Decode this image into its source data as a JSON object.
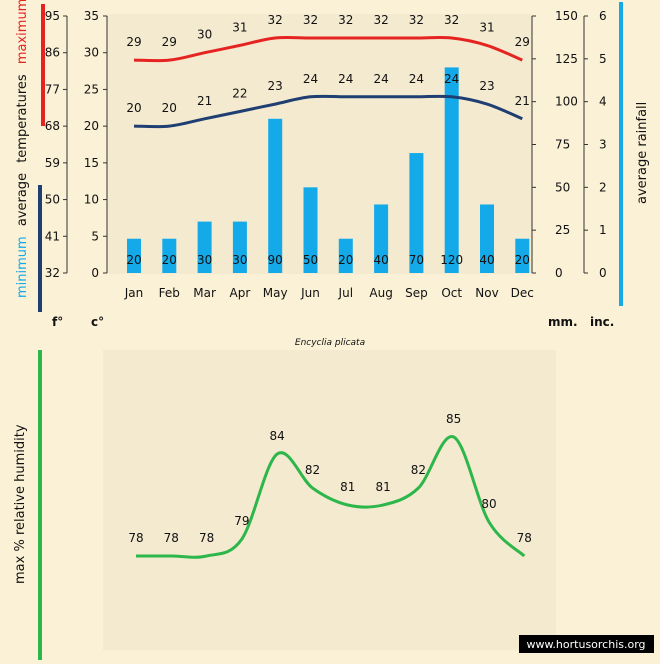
{
  "caption": "Encyclia plicata",
  "watermark": "www.hortusorchis.org",
  "colors": {
    "max_temp": "#e52421",
    "min_temp": "#1f3f73",
    "rain": "#14a9e8",
    "humidity": "#2db64a",
    "panel": "#f4ead0",
    "background": "#fbf1d6"
  },
  "chart_data": [
    {
      "type": "bar",
      "categories": [
        "Jan",
        "Feb",
        "Mar",
        "Apr",
        "May",
        "Jun",
        "Jul",
        "Aug",
        "Sep",
        "Oct",
        "Nov",
        "Dec"
      ],
      "series": [
        {
          "name": "maximum",
          "values": [
            29,
            29,
            30,
            31,
            32,
            32,
            32,
            32,
            32,
            32,
            31,
            29
          ]
        },
        {
          "name": "minimum",
          "values": [
            20,
            20,
            21,
            22,
            23,
            24,
            24,
            24,
            24,
            24,
            23,
            21
          ]
        },
        {
          "name": "average rainfall",
          "values": [
            20,
            20,
            30,
            30,
            90,
            50,
            20,
            40,
            70,
            120,
            40,
            20
          ]
        }
      ],
      "axes": {
        "fahrenheit": {
          "unit": "f°",
          "ticks": [
            95,
            86,
            77,
            68,
            59,
            50,
            41,
            32
          ]
        },
        "celsius": {
          "unit": "c°",
          "ticks": [
            35,
            30,
            25,
            20,
            15,
            10,
            5,
            0
          ],
          "range": [
            0,
            35
          ]
        },
        "mm": {
          "unit": "mm.",
          "ticks": [
            150,
            125,
            100,
            75,
            50,
            25,
            0
          ],
          "range": [
            0,
            150
          ]
        },
        "inches": {
          "unit": "inc.",
          "ticks": [
            6,
            5,
            4,
            3,
            2,
            1,
            0
          ]
        }
      },
      "left_axis_label": {
        "minimum": "minimum",
        "average": "average",
        "temperatures": "temperatures",
        "maximum": "maximum"
      },
      "right_axis_label": "average rainfall"
    },
    {
      "type": "line",
      "categories": [
        "Jan",
        "Feb",
        "Mar",
        "Apr",
        "May",
        "Jun",
        "Jul",
        "Aug",
        "Sep",
        "Oct",
        "Nov",
        "Dec"
      ],
      "series": [
        {
          "name": "max % relative humidity",
          "values": [
            78,
            78,
            78,
            79,
            84,
            82,
            81,
            81,
            82,
            85,
            80,
            78
          ]
        }
      ],
      "ylabel": "max %  relative humidity"
    }
  ]
}
